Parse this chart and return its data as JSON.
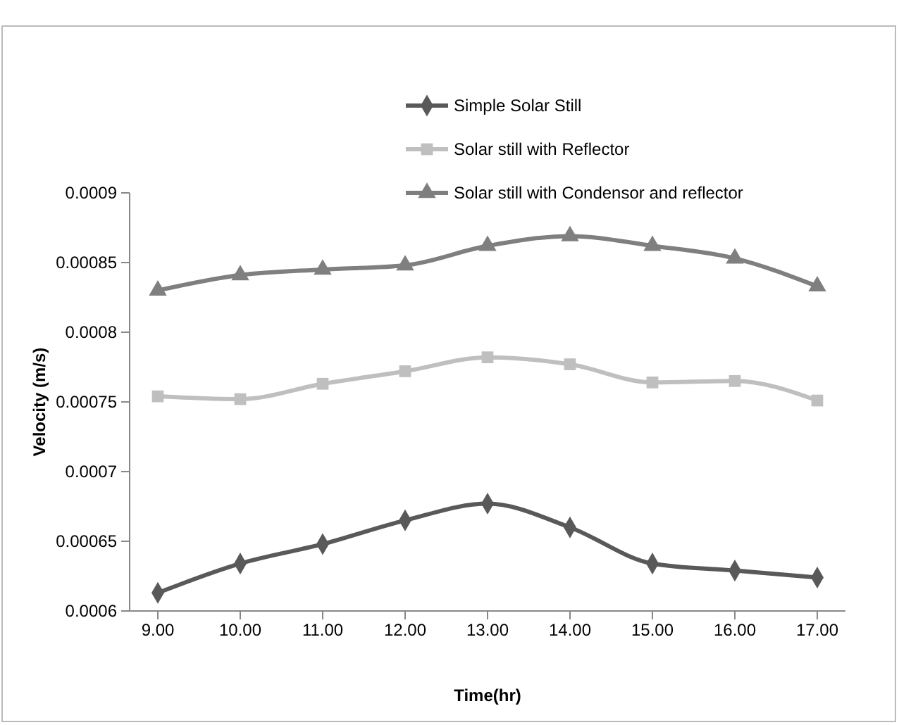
{
  "chart_data": {
    "type": "line",
    "xlabel": "Time(hr)",
    "ylabel": "Velocity (m/s)",
    "categories": [
      "9.00",
      "10.00",
      "11.00",
      "12.00",
      "13.00",
      "14.00",
      "15.00",
      "16.00",
      "17.00"
    ],
    "ylim": [
      0.0006,
      0.0009
    ],
    "yticks": [
      0.0006,
      0.00065,
      0.0007,
      0.00075,
      0.0008,
      0.00085,
      0.0009
    ],
    "grid": false,
    "legend": "top right",
    "line_style": "solid",
    "series": [
      {
        "name": "Simple Solar Still",
        "color": "#595959",
        "marker": "diamond",
        "values": [
          0.000613,
          0.000634,
          0.000648,
          0.000665,
          0.000677,
          0.00066,
          0.000634,
          0.000629,
          0.000624
        ]
      },
      {
        "name": "Solar still with Reflector",
        "color": "#bfbfbf",
        "marker": "square",
        "values": [
          0.000754,
          0.000752,
          0.000763,
          0.000772,
          0.000782,
          0.000777,
          0.000764,
          0.000765,
          0.000751
        ]
      },
      {
        "name": "Solar still with Condensor and reflector",
        "color": "#7f7f7f",
        "marker": "triangle",
        "values": [
          0.00083,
          0.000841,
          0.000845,
          0.000848,
          0.000862,
          0.000869,
          0.000862,
          0.000853,
          0.000833
        ]
      }
    ]
  }
}
